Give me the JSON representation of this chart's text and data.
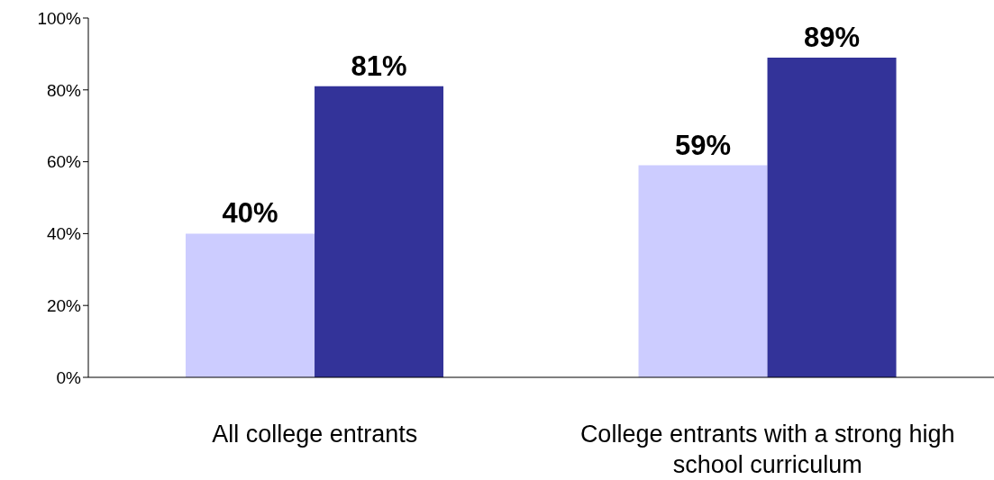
{
  "chart_data": {
    "type": "bar",
    "categories": [
      "All college entrants",
      "College entrants with a strong high school curriculum"
    ],
    "series": [
      {
        "color": "#ccccff",
        "values": [
          40,
          59
        ],
        "value_labels": [
          "40%",
          "59%"
        ]
      },
      {
        "color": "#333399",
        "values": [
          81,
          89
        ],
        "value_labels": [
          "81%",
          "89%"
        ]
      }
    ],
    "ylim": [
      0,
      100
    ],
    "yticks": [
      {
        "value": 0,
        "label": "0%"
      },
      {
        "value": 20,
        "label": "20%"
      },
      {
        "value": 40,
        "label": "40%"
      },
      {
        "value": 60,
        "label": "60%"
      },
      {
        "value": 80,
        "label": "80%"
      },
      {
        "value": 100,
        "label": "100%"
      }
    ],
    "grid": false,
    "legend": false
  }
}
